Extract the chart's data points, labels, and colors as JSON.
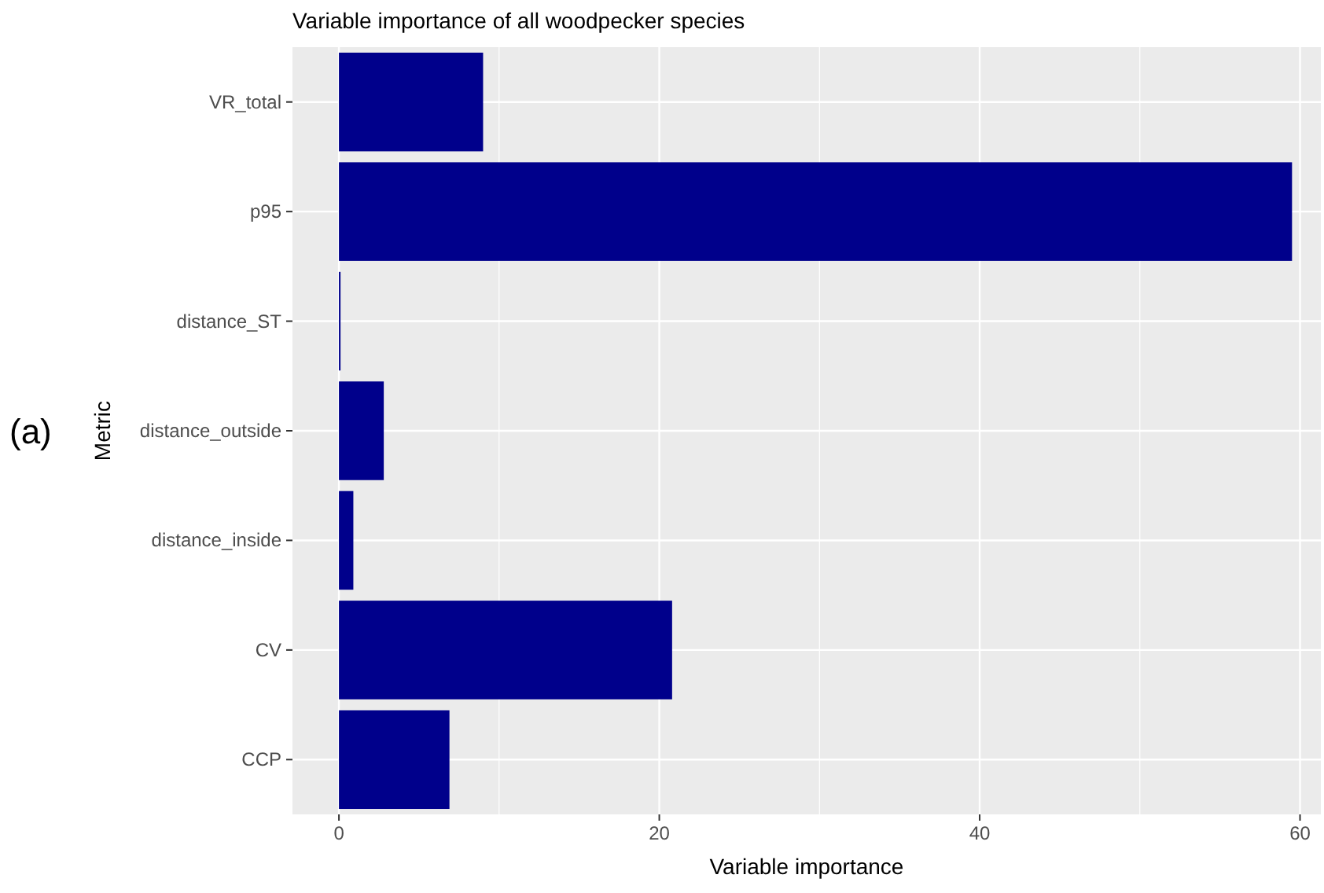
{
  "chart_data": {
    "type": "bar",
    "orientation": "horizontal",
    "title": "Variable importance of all woodpecker species",
    "xlabel": "Variable importance",
    "ylabel": "Metric",
    "annotations": [
      "(a)"
    ],
    "categories": [
      "VR_total",
      "p95",
      "distance_ST",
      "distance_outside",
      "distance_inside",
      "CV",
      "CCP"
    ],
    "values": [
      9.0,
      59.5,
      0.1,
      2.8,
      0.9,
      20.8,
      6.9
    ],
    "color": "#00008b",
    "xlim": [
      -2.9,
      61.3
    ],
    "xticks": [
      0,
      20,
      40,
      60
    ],
    "grid": true
  }
}
